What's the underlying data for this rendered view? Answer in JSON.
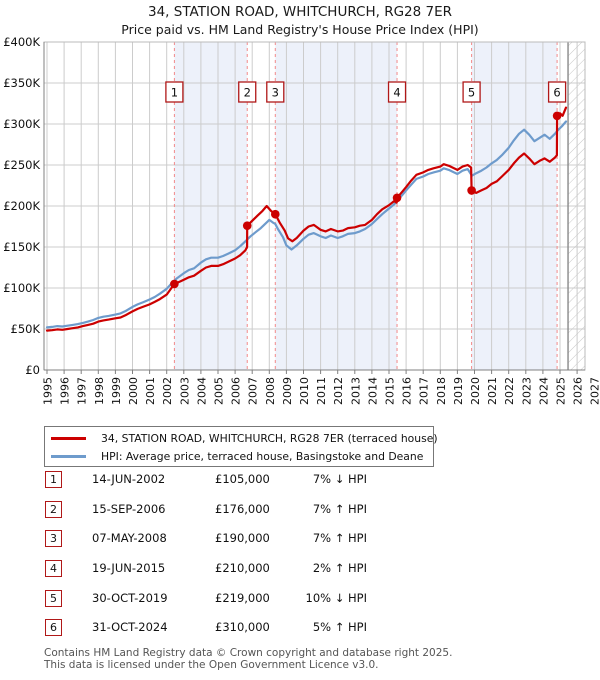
{
  "header": {
    "title": "34, STATION ROAD, WHITCHURCH, RG28 7ER",
    "subtitle": "Price paid vs. HM Land Registry's House Price Index (HPI)"
  },
  "legend": {
    "series": [
      {
        "label": "34, STATION ROAD, WHITCHURCH, RG28 7ER (terraced house)",
        "color": "#cc0000"
      },
      {
        "label": "HPI: Average price, terraced house, Basingstoke and Deane",
        "color": "#6e9bcc"
      }
    ]
  },
  "sales_table": {
    "rows": [
      {
        "num": "1",
        "date": "14-JUN-2002",
        "price": "£105,000",
        "hpi_diff": "7% ↓ HPI"
      },
      {
        "num": "2",
        "date": "15-SEP-2006",
        "price": "£176,000",
        "hpi_diff": "7% ↑ HPI"
      },
      {
        "num": "3",
        "date": "07-MAY-2008",
        "price": "£190,000",
        "hpi_diff": "7% ↑ HPI"
      },
      {
        "num": "4",
        "date": "19-JUN-2015",
        "price": "£210,000",
        "hpi_diff": "2% ↑ HPI"
      },
      {
        "num": "5",
        "date": "30-OCT-2019",
        "price": "£219,000",
        "hpi_diff": "10% ↓ HPI"
      },
      {
        "num": "6",
        "date": "31-OCT-2024",
        "price": "£310,000",
        "hpi_diff": "5% ↑ HPI"
      }
    ]
  },
  "footer": {
    "line1": "Contains HM Land Registry data © Crown copyright and database right 2025.",
    "line2": "This data is licensed under the Open Government Licence v3.0."
  },
  "chart_data": {
    "type": "line",
    "title": "34, STATION ROAD, WHITCHURCH, RG28 7ER",
    "subtitle": "Price paid vs. HM Land Registry's House Price Index (HPI)",
    "x_axis": {
      "start_year": 1995,
      "end_year": 2027,
      "tick_labels": [
        "1995",
        "1996",
        "1997",
        "1998",
        "1999",
        "2000",
        "2001",
        "2002",
        "2003",
        "2004",
        "2005",
        "2006",
        "2007",
        "2008",
        "2009",
        "2010",
        "2011",
        "2012",
        "2013",
        "2014",
        "2015",
        "2016",
        "2017",
        "2018",
        "2019",
        "2020",
        "2021",
        "2022",
        "2023",
        "2024",
        "2025",
        "2026",
        "2027"
      ]
    },
    "y_axis": {
      "min": 0,
      "max": 400000,
      "tick_values": [
        0,
        50000,
        100000,
        150000,
        200000,
        250000,
        300000,
        350000,
        400000
      ],
      "tick_labels": [
        "£0",
        "£50K",
        "£100K",
        "£150K",
        "£200K",
        "£250K",
        "£300K",
        "£350K",
        "£400K"
      ]
    },
    "colors": {
      "price_line": "#cc0000",
      "hpi_line": "#6e9bcc",
      "band": "#edf1fa",
      "dashed": "#f28a8a",
      "grid": "#cccccc",
      "marker_box_border": "#b01818",
      "hatch_line": "#c8c8c8",
      "axis": "#808080"
    },
    "ownership_bands": [
      [
        2002.45,
        2006.71
      ],
      [
        2008.35,
        2015.47
      ],
      [
        2019.83,
        2024.83
      ]
    ],
    "future_start": 2025.47,
    "sales": [
      {
        "num": "1",
        "year": 2002.45,
        "price": 105000
      },
      {
        "num": "2",
        "year": 2006.71,
        "price": 176000
      },
      {
        "num": "3",
        "year": 2008.35,
        "price": 190000
      },
      {
        "num": "4",
        "year": 2015.47,
        "price": 210000
      },
      {
        "num": "5",
        "year": 2019.83,
        "price": 219000
      },
      {
        "num": "6",
        "year": 2024.83,
        "price": 310000
      }
    ],
    "series": [
      {
        "name": "34, STATION ROAD, WHITCHURCH, RG28 7ER (terraced house)",
        "color": "#cc0000",
        "points": [
          [
            1995.0,
            48000
          ],
          [
            1995.3,
            48500
          ],
          [
            1995.6,
            49500
          ],
          [
            1995.9,
            49000
          ],
          [
            1996.2,
            50000
          ],
          [
            1996.5,
            51000
          ],
          [
            1996.8,
            52000
          ],
          [
            1997.1,
            53500
          ],
          [
            1997.4,
            55000
          ],
          [
            1997.7,
            56500
          ],
          [
            1998.0,
            59000
          ],
          [
            1998.3,
            60500
          ],
          [
            1998.6,
            61500
          ],
          [
            1999.0,
            63000
          ],
          [
            1999.3,
            64000
          ],
          [
            1999.6,
            67000
          ],
          [
            2000.0,
            71500
          ],
          [
            2000.3,
            74500
          ],
          [
            2000.6,
            77000
          ],
          [
            2001.0,
            80000
          ],
          [
            2001.3,
            83000
          ],
          [
            2001.6,
            86500
          ],
          [
            2002.0,
            92000
          ],
          [
            2002.45,
            105000
          ],
          [
            2002.8,
            108000
          ],
          [
            2003.0,
            110000
          ],
          [
            2003.3,
            113000
          ],
          [
            2003.6,
            115000
          ],
          [
            2004.0,
            121000
          ],
          [
            2004.3,
            125000
          ],
          [
            2004.6,
            127000
          ],
          [
            2005.0,
            127000
          ],
          [
            2005.3,
            129000
          ],
          [
            2005.6,
            132000
          ],
          [
            2006.0,
            136000
          ],
          [
            2006.3,
            140000
          ],
          [
            2006.6,
            146000
          ],
          [
            2006.7,
            150000
          ],
          [
            2006.71,
            176000
          ],
          [
            2007.0,
            182000
          ],
          [
            2007.3,
            188000
          ],
          [
            2007.6,
            194000
          ],
          [
            2007.85,
            200000
          ],
          [
            2008.1,
            194000
          ],
          [
            2008.35,
            190000
          ],
          [
            2008.6,
            180000
          ],
          [
            2008.9,
            170000
          ],
          [
            2009.1,
            160500
          ],
          [
            2009.35,
            157000
          ],
          [
            2009.6,
            161000
          ],
          [
            2010.0,
            170000
          ],
          [
            2010.3,
            175000
          ],
          [
            2010.6,
            177000
          ],
          [
            2011.0,
            171000
          ],
          [
            2011.3,
            169000
          ],
          [
            2011.6,
            172000
          ],
          [
            2012.0,
            169000
          ],
          [
            2012.3,
            170000
          ],
          [
            2012.6,
            173000
          ],
          [
            2013.0,
            174000
          ],
          [
            2013.3,
            176000
          ],
          [
            2013.6,
            177000
          ],
          [
            2014.0,
            183000
          ],
          [
            2014.3,
            190000
          ],
          [
            2014.6,
            196000
          ],
          [
            2015.0,
            201000
          ],
          [
            2015.3,
            206000
          ],
          [
            2015.45,
            204000
          ],
          [
            2015.47,
            210000
          ],
          [
            2015.8,
            218000
          ],
          [
            2016.0,
            223000
          ],
          [
            2016.3,
            231000
          ],
          [
            2016.6,
            238000
          ],
          [
            2017.0,
            241000
          ],
          [
            2017.3,
            244000
          ],
          [
            2017.6,
            246000
          ],
          [
            2018.0,
            248000
          ],
          [
            2018.2,
            251000
          ],
          [
            2018.5,
            249000
          ],
          [
            2018.8,
            246000
          ],
          [
            2019.0,
            244000
          ],
          [
            2019.3,
            248000
          ],
          [
            2019.6,
            250000
          ],
          [
            2019.8,
            247000
          ],
          [
            2019.83,
            219000
          ],
          [
            2020.1,
            216000
          ],
          [
            2020.4,
            219000
          ],
          [
            2020.7,
            222000
          ],
          [
            2021.0,
            227000
          ],
          [
            2021.3,
            230000
          ],
          [
            2021.6,
            236000
          ],
          [
            2022.0,
            244000
          ],
          [
            2022.3,
            252000
          ],
          [
            2022.6,
            259000
          ],
          [
            2022.9,
            264000
          ],
          [
            2023.2,
            258000
          ],
          [
            2023.5,
            251000
          ],
          [
            2023.8,
            255000
          ],
          [
            2024.1,
            258000
          ],
          [
            2024.4,
            254000
          ],
          [
            2024.7,
            259000
          ],
          [
            2024.82,
            262000
          ],
          [
            2024.83,
            310000
          ],
          [
            2025.0,
            313000
          ],
          [
            2025.15,
            310000
          ],
          [
            2025.35,
            320000
          ]
        ]
      },
      {
        "name": "HPI: Average price, terraced house, Basingstoke and Deane",
        "color": "#6e9bcc",
        "points": [
          [
            1995.0,
            52000
          ],
          [
            1995.3,
            52500
          ],
          [
            1995.6,
            53500
          ],
          [
            1995.9,
            53000
          ],
          [
            1996.2,
            54000
          ],
          [
            1996.5,
            55000
          ],
          [
            1996.8,
            56000
          ],
          [
            1997.1,
            57500
          ],
          [
            1997.4,
            59000
          ],
          [
            1997.7,
            61000
          ],
          [
            1998.0,
            63500
          ],
          [
            1998.3,
            65000
          ],
          [
            1998.6,
            66000
          ],
          [
            1999.0,
            67500
          ],
          [
            1999.3,
            69000
          ],
          [
            1999.6,
            72000
          ],
          [
            2000.0,
            77000
          ],
          [
            2000.3,
            80000
          ],
          [
            2000.6,
            82500
          ],
          [
            2001.0,
            86000
          ],
          [
            2001.3,
            89000
          ],
          [
            2001.6,
            93000
          ],
          [
            2002.0,
            99000
          ],
          [
            2002.3,
            106000
          ],
          [
            2002.6,
            112000
          ],
          [
            2003.0,
            118000
          ],
          [
            2003.3,
            122000
          ],
          [
            2003.6,
            124000
          ],
          [
            2004.0,
            131000
          ],
          [
            2004.3,
            135000
          ],
          [
            2004.6,
            137000
          ],
          [
            2005.0,
            137000
          ],
          [
            2005.3,
            139000
          ],
          [
            2005.6,
            142000
          ],
          [
            2006.0,
            146000
          ],
          [
            2006.3,
            151000
          ],
          [
            2006.6,
            157000
          ],
          [
            2006.9,
            163000
          ],
          [
            2007.2,
            168000
          ],
          [
            2007.5,
            173000
          ],
          [
            2007.8,
            179000
          ],
          [
            2008.0,
            183000
          ],
          [
            2008.2,
            180000
          ],
          [
            2008.35,
            178000
          ],
          [
            2008.5,
            172000
          ],
          [
            2008.8,
            162000
          ],
          [
            2009.0,
            152000
          ],
          [
            2009.3,
            147000
          ],
          [
            2009.6,
            152000
          ],
          [
            2010.0,
            160000
          ],
          [
            2010.3,
            165000
          ],
          [
            2010.6,
            167000
          ],
          [
            2011.0,
            163000
          ],
          [
            2011.3,
            161000
          ],
          [
            2011.6,
            164000
          ],
          [
            2012.0,
            161000
          ],
          [
            2012.3,
            163000
          ],
          [
            2012.6,
            166000
          ],
          [
            2013.0,
            167000
          ],
          [
            2013.3,
            169000
          ],
          [
            2013.6,
            172000
          ],
          [
            2014.0,
            178000
          ],
          [
            2014.3,
            184000
          ],
          [
            2014.6,
            190000
          ],
          [
            2015.0,
            197000
          ],
          [
            2015.3,
            202000
          ],
          [
            2015.5,
            207000
          ],
          [
            2015.8,
            214000
          ],
          [
            2016.0,
            219000
          ],
          [
            2016.3,
            226000
          ],
          [
            2016.6,
            233000
          ],
          [
            2017.0,
            236000
          ],
          [
            2017.3,
            239000
          ],
          [
            2017.6,
            241000
          ],
          [
            2018.0,
            243000
          ],
          [
            2018.2,
            246000
          ],
          [
            2018.5,
            244000
          ],
          [
            2018.8,
            241000
          ],
          [
            2019.0,
            239000
          ],
          [
            2019.3,
            243000
          ],
          [
            2019.6,
            245000
          ],
          [
            2019.85,
            237000
          ],
          [
            2020.1,
            240000
          ],
          [
            2020.4,
            243000
          ],
          [
            2020.7,
            247000
          ],
          [
            2021.0,
            252000
          ],
          [
            2021.3,
            256000
          ],
          [
            2021.6,
            262000
          ],
          [
            2022.0,
            271000
          ],
          [
            2022.3,
            280000
          ],
          [
            2022.6,
            288000
          ],
          [
            2022.9,
            293000
          ],
          [
            2023.2,
            287000
          ],
          [
            2023.5,
            279000
          ],
          [
            2023.8,
            283000
          ],
          [
            2024.1,
            287000
          ],
          [
            2024.4,
            282000
          ],
          [
            2024.7,
            288000
          ],
          [
            2024.9,
            293000
          ],
          [
            2025.1,
            297000
          ],
          [
            2025.35,
            303000
          ]
        ]
      }
    ]
  }
}
